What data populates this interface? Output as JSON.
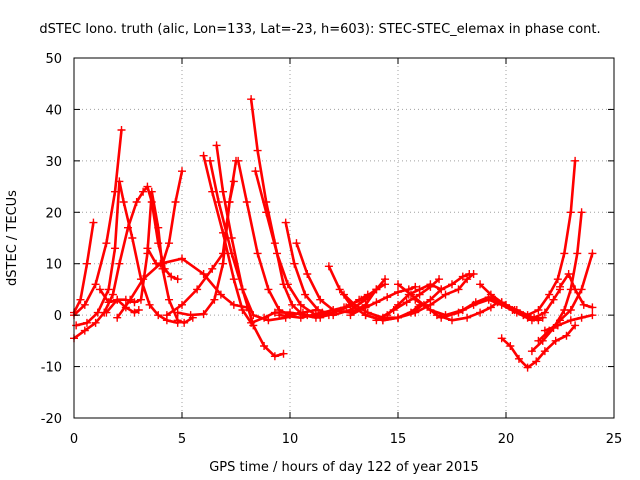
{
  "chart_data": {
    "type": "scatter",
    "title": "dSTEC Iono. truth (alic, Lon=133, Lat=-23, h=603): STEC-STEC_elemax in phase cont.",
    "xlabel": "GPS time / hours of day 122 of year 2015",
    "ylabel": "dSTEC  / TECUs",
    "xlim": [
      0,
      25
    ],
    "ylim": [
      -20,
      50
    ],
    "xticks": [
      0,
      5,
      10,
      15,
      20,
      25
    ],
    "yticks": [
      -20,
      -10,
      0,
      10,
      20,
      30,
      40,
      50
    ],
    "grid": true,
    "marker": "plus",
    "color": "#ff0000",
    "series": [
      {
        "points": [
          [
            0.0,
            0.5
          ],
          [
            0.3,
            3
          ],
          [
            0.6,
            10
          ],
          [
            0.9,
            18
          ]
        ]
      },
      {
        "points": [
          [
            0.0,
            -4.5
          ],
          [
            0.5,
            -3
          ],
          [
            1.0,
            -1.5
          ],
          [
            1.4,
            0.5
          ],
          [
            1.8,
            4
          ],
          [
            2.1,
            10
          ],
          [
            2.5,
            17
          ],
          [
            2.9,
            22
          ],
          [
            3.2,
            24
          ],
          [
            3.4,
            25
          ],
          [
            3.6,
            22
          ],
          [
            3.9,
            14
          ],
          [
            4.2,
            9
          ],
          [
            4.5,
            7.5
          ],
          [
            4.8,
            7
          ]
        ]
      },
      {
        "points": [
          [
            0.0,
            0.0
          ],
          [
            0.5,
            2
          ],
          [
            1.0,
            6
          ],
          [
            1.5,
            14
          ],
          [
            1.9,
            24
          ],
          [
            2.2,
            36
          ]
        ]
      },
      {
        "points": [
          [
            1.2,
            5
          ],
          [
            1.6,
            2.5
          ],
          [
            2.0,
            3
          ],
          [
            2.4,
            1.5
          ],
          [
            2.8,
            0.5
          ],
          [
            3.0,
            1
          ]
        ]
      },
      {
        "points": [
          [
            0.1,
            -2
          ],
          [
            0.6,
            -1.5
          ],
          [
            1.1,
            0.5
          ],
          [
            1.6,
            5
          ],
          [
            1.9,
            13
          ],
          [
            2.1,
            26
          ],
          [
            2.3,
            22
          ],
          [
            2.7,
            15
          ],
          [
            3.1,
            7
          ],
          [
            3.5,
            2
          ],
          [
            3.9,
            0
          ],
          [
            4.3,
            -1
          ],
          [
            4.8,
            -1.5
          ]
        ]
      },
      {
        "points": [
          [
            1.5,
            0.5
          ],
          [
            2.0,
            3
          ],
          [
            2.4,
            3
          ],
          [
            2.8,
            2.5
          ],
          [
            3.1,
            3
          ],
          [
            3.4,
            12
          ],
          [
            3.6,
            24
          ],
          [
            3.9,
            17
          ],
          [
            4.1,
            9
          ],
          [
            4.4,
            3
          ],
          [
            4.8,
            -1
          ],
          [
            5.1,
            -1.5
          ],
          [
            5.5,
            -0.5
          ]
        ]
      },
      {
        "points": [
          [
            3.4,
            13
          ],
          [
            3.8,
            10
          ],
          [
            4.1,
            10
          ],
          [
            4.4,
            14
          ],
          [
            4.7,
            22
          ],
          [
            5.0,
            28
          ]
        ]
      },
      {
        "points": [
          [
            2.0,
            -0.5
          ],
          [
            2.6,
            3
          ],
          [
            3.2,
            7
          ],
          [
            4.0,
            10
          ],
          [
            5.0,
            11
          ],
          [
            6.0,
            8
          ],
          [
            6.8,
            4
          ],
          [
            7.4,
            2
          ],
          [
            8.0,
            1.5
          ]
        ]
      },
      {
        "points": [
          [
            4.3,
            0
          ],
          [
            5.0,
            2
          ],
          [
            5.7,
            5
          ],
          [
            6.4,
            9
          ],
          [
            6.9,
            12
          ],
          [
            7.2,
            22
          ],
          [
            7.5,
            30
          ]
        ]
      },
      {
        "points": [
          [
            4.8,
            0.5
          ],
          [
            5.4,
            0
          ],
          [
            6.0,
            0.2
          ],
          [
            6.5,
            3
          ],
          [
            6.9,
            10
          ],
          [
            7.2,
            22
          ],
          [
            7.4,
            26
          ]
        ]
      },
      {
        "points": [
          [
            6.0,
            31
          ],
          [
            6.4,
            24
          ],
          [
            6.9,
            16
          ],
          [
            7.4,
            7
          ],
          [
            7.8,
            1
          ],
          [
            8.2,
            -1.5
          ],
          [
            8.8,
            -0.5
          ],
          [
            9.3,
            0.5
          ],
          [
            10.0,
            0.5
          ],
          [
            10.8,
            0
          ],
          [
            11.4,
            -0.5
          ]
        ]
      },
      {
        "points": [
          [
            6.3,
            30
          ],
          [
            6.7,
            22
          ],
          [
            7.3,
            12
          ],
          [
            7.8,
            5
          ],
          [
            8.3,
            0
          ],
          [
            9.0,
            -1
          ],
          [
            9.8,
            -0.5
          ],
          [
            10.5,
            0.5
          ]
        ]
      },
      {
        "points": [
          [
            6.6,
            33
          ],
          [
            6.9,
            24
          ],
          [
            7.3,
            15
          ],
          [
            7.8,
            5
          ],
          [
            8.3,
            -2
          ],
          [
            8.8,
            -6
          ],
          [
            9.3,
            -8
          ],
          [
            9.7,
            -7.5
          ]
        ]
      },
      {
        "points": [
          [
            7.6,
            30
          ],
          [
            8.0,
            22
          ],
          [
            8.5,
            12
          ],
          [
            9.0,
            5
          ],
          [
            9.5,
            1
          ],
          [
            10.0,
            0
          ],
          [
            10.6,
            0.5
          ],
          [
            11.2,
            1
          ]
        ]
      },
      {
        "points": [
          [
            8.2,
            42
          ],
          [
            8.5,
            32
          ],
          [
            8.9,
            22
          ],
          [
            9.3,
            14
          ],
          [
            9.7,
            6
          ],
          [
            10.1,
            2
          ],
          [
            10.6,
            0
          ],
          [
            11.2,
            -0.5
          ],
          [
            11.8,
            0
          ]
        ]
      },
      {
        "points": [
          [
            8.4,
            28
          ],
          [
            8.9,
            20
          ],
          [
            9.4,
            12
          ],
          [
            9.9,
            6
          ],
          [
            10.5,
            2
          ],
          [
            11.2,
            0
          ],
          [
            12.0,
            0.5
          ],
          [
            12.6,
            1.5
          ],
          [
            13.2,
            3
          ],
          [
            13.6,
            4
          ]
        ]
      },
      {
        "points": [
          [
            9.8,
            18
          ],
          [
            10.2,
            10
          ],
          [
            10.7,
            4
          ],
          [
            11.3,
            1
          ],
          [
            12.0,
            0
          ],
          [
            12.8,
            1
          ],
          [
            13.5,
            3
          ],
          [
            14.0,
            5
          ],
          [
            14.4,
            6
          ]
        ]
      },
      {
        "points": [
          [
            10.3,
            14
          ],
          [
            10.8,
            8
          ],
          [
            11.4,
            3
          ],
          [
            12.0,
            1
          ],
          [
            12.8,
            0.5
          ],
          [
            13.5,
            2
          ],
          [
            14.0,
            5
          ],
          [
            14.4,
            7
          ]
        ]
      },
      {
        "points": [
          [
            9.5,
            0
          ],
          [
            10.5,
            -0.5
          ],
          [
            11.5,
            0.5
          ],
          [
            12.5,
            1.5
          ],
          [
            13.3,
            3
          ],
          [
            14.0,
            5
          ]
        ]
      },
      {
        "points": [
          [
            11.8,
            9.5
          ],
          [
            12.3,
            5
          ],
          [
            12.8,
            2
          ],
          [
            13.5,
            0
          ],
          [
            14.3,
            -1
          ],
          [
            15.0,
            -0.5
          ],
          [
            15.6,
            0.5
          ],
          [
            16.0,
            2
          ]
        ]
      },
      {
        "points": [
          [
            12.5,
            4
          ],
          [
            13.0,
            2
          ],
          [
            13.6,
            0.5
          ],
          [
            14.3,
            -0.5
          ],
          [
            15.0,
            -0.5
          ],
          [
            15.8,
            0.5
          ],
          [
            16.5,
            2
          ],
          [
            17.2,
            4
          ],
          [
            17.8,
            5
          ],
          [
            18.2,
            7
          ],
          [
            18.5,
            8
          ]
        ]
      },
      {
        "points": [
          [
            13.5,
            0
          ],
          [
            14.3,
            -1
          ],
          [
            15.0,
            -0.5
          ],
          [
            15.8,
            1
          ],
          [
            16.5,
            3
          ],
          [
            17.0,
            5
          ],
          [
            17.5,
            6
          ],
          [
            18.0,
            7.5
          ],
          [
            18.3,
            8
          ]
        ]
      },
      {
        "points": [
          [
            14.0,
            -1
          ],
          [
            14.8,
            1
          ],
          [
            15.4,
            2.5
          ],
          [
            16.0,
            4
          ],
          [
            16.5,
            5.5
          ],
          [
            16.9,
            7
          ]
        ]
      },
      {
        "points": [
          [
            14.5,
            0
          ],
          [
            15.0,
            2
          ],
          [
            15.5,
            4
          ],
          [
            16.0,
            5
          ],
          [
            16.5,
            6
          ],
          [
            17.0,
            5
          ]
        ]
      },
      {
        "points": [
          [
            12.8,
            0
          ],
          [
            13.5,
            1.5
          ],
          [
            14.0,
            2.5
          ],
          [
            14.5,
            3.5
          ],
          [
            15.0,
            4.5
          ],
          [
            15.5,
            5
          ],
          [
            15.8,
            5.5
          ]
        ]
      },
      {
        "points": [
          [
            15.0,
            6
          ],
          [
            15.6,
            4
          ],
          [
            16.2,
            2
          ],
          [
            16.8,
            0
          ],
          [
            17.5,
            -1
          ],
          [
            18.2,
            -0.5
          ],
          [
            18.8,
            0.5
          ],
          [
            19.3,
            1.5
          ],
          [
            19.6,
            2.5
          ]
        ]
      },
      {
        "points": [
          [
            15.8,
            3
          ],
          [
            16.5,
            1
          ],
          [
            17.2,
            0
          ],
          [
            18.0,
            1
          ],
          [
            18.6,
            2.5
          ],
          [
            19.2,
            3.5
          ],
          [
            19.8,
            2.5
          ],
          [
            20.4,
            1
          ],
          [
            21.0,
            -0.5
          ],
          [
            21.5,
            -1
          ]
        ]
      },
      {
        "points": [
          [
            17.0,
            -0.5
          ],
          [
            17.8,
            0.5
          ],
          [
            18.5,
            2
          ],
          [
            19.2,
            3
          ],
          [
            19.8,
            2
          ],
          [
            20.5,
            0.5
          ],
          [
            21.2,
            -1
          ],
          [
            21.7,
            -0.5
          ]
        ]
      },
      {
        "points": [
          [
            18.8,
            6
          ],
          [
            19.3,
            4
          ],
          [
            19.8,
            2.5
          ],
          [
            20.3,
            1
          ],
          [
            20.8,
            0
          ],
          [
            21.3,
            -0.5
          ],
          [
            21.8,
            0.5
          ],
          [
            22.2,
            3
          ],
          [
            22.5,
            5
          ]
        ]
      },
      {
        "points": [
          [
            19.5,
            3
          ],
          [
            20.0,
            2
          ],
          [
            20.5,
            1
          ],
          [
            21.0,
            0
          ],
          [
            21.5,
            1
          ],
          [
            22.0,
            4
          ],
          [
            22.4,
            7
          ],
          [
            22.7,
            12
          ],
          [
            23.0,
            20
          ],
          [
            23.2,
            30
          ]
        ]
      },
      {
        "points": [
          [
            19.8,
            -4.5
          ],
          [
            20.2,
            -6
          ],
          [
            20.6,
            -8.5
          ],
          [
            21.0,
            -10.2
          ],
          [
            21.4,
            -9
          ],
          [
            21.8,
            -7
          ],
          [
            22.3,
            -5
          ],
          [
            22.8,
            -4
          ],
          [
            23.2,
            -2
          ]
        ]
      },
      {
        "points": [
          [
            21.2,
            -7
          ],
          [
            21.7,
            -5
          ],
          [
            22.2,
            -2.5
          ],
          [
            22.7,
            1
          ],
          [
            23.0,
            5
          ],
          [
            23.3,
            12
          ],
          [
            23.5,
            20
          ]
        ]
      },
      {
        "points": [
          [
            21.5,
            -5
          ],
          [
            22.0,
            -3
          ],
          [
            22.5,
            -1
          ],
          [
            23.0,
            1
          ],
          [
            23.5,
            5
          ],
          [
            24.0,
            12
          ]
        ]
      },
      {
        "points": [
          [
            21.8,
            -3
          ],
          [
            22.4,
            -2
          ],
          [
            23.0,
            -1
          ],
          [
            23.5,
            -0.5
          ],
          [
            24.0,
            0
          ]
        ]
      },
      {
        "points": [
          [
            22.5,
            5.5
          ],
          [
            22.9,
            8
          ],
          [
            23.2,
            5
          ],
          [
            23.6,
            2
          ],
          [
            24.0,
            1.5
          ]
        ]
      }
    ]
  }
}
